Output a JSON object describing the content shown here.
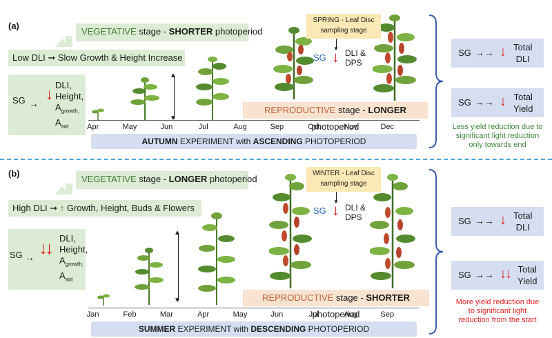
{
  "panel_a": {
    "label": "(a)",
    "vegetative": {
      "prefix": "VEGETATIVE",
      "mid": " stage - ",
      "bold": "SHORTER",
      "suffix": " photoperiod"
    },
    "growth_line": {
      "left": "Low DLI",
      "right": "Slow Growth & Height Increase"
    },
    "sg_box": {
      "sg": "SG",
      "params": [
        "DLI,",
        "Height,"
      ],
      "a1": "A",
      "a1sub": "growth,",
      "a2": "A",
      "a2sub": "sat"
    },
    "sampling": {
      "line1": "SPRING - Leaf Disc",
      "line2": "sampling stage"
    },
    "sg_dli": {
      "sg": "SG",
      "text1": "DLI &",
      "text2": "DPS"
    },
    "reproductive": {
      "prefix": "REPRODUCTIVE",
      "mid": " stage - ",
      "bold": "LONGER",
      "suffix": " photoperiod"
    },
    "months": [
      "Apr",
      "May",
      "Jun",
      "Jul",
      "Aug",
      "Sep",
      "Oct",
      "Nov",
      "Dec"
    ],
    "banner": {
      "b1": "AUTUMN",
      "mid": " EXPERIMENT with ",
      "b2": "ASCENDING",
      "end": " PHOTOPERIOD"
    },
    "right_boxes": [
      {
        "sg": "SG",
        "l1": "Total",
        "l2": "DLI"
      },
      {
        "sg": "SG",
        "l1": "Total",
        "l2": "Yield"
      }
    ],
    "note": [
      "Less yield reduction due to",
      "significant light reduction",
      "only towards end"
    ]
  },
  "panel_b": {
    "label": "(b)",
    "vegetative": {
      "prefix": "VEGETATIVE",
      "mid": " stage - ",
      "bold": "LONGER",
      "suffix": " photoperiod"
    },
    "growth_line": {
      "left": "High DLI",
      "right": "Growth, Height, Buds & Flowers"
    },
    "sg_box": {
      "sg": "SG",
      "params": [
        "DLI,",
        "Height,"
      ],
      "a1": "A",
      "a1sub": "growth,",
      "a2": "A",
      "a2sub": "sat"
    },
    "sampling": {
      "line1": "WINTER - Leaf Disc",
      "line2": "sampling stage"
    },
    "sg_dli": {
      "sg": "SG",
      "text1": "DLI &",
      "text2": "DPS"
    },
    "reproductive": {
      "prefix": "REPRODUCTIVE",
      "mid": " stage - ",
      "bold": "SHORTER",
      "suffix": " photoperiod"
    },
    "months": [
      "Jan",
      "Feb",
      "Mar",
      "Apr",
      "May",
      "Jun",
      "Jul",
      "Aug",
      "Sep"
    ],
    "banner": {
      "b1": "SUMMER",
      "mid": " EXPERIMENT with ",
      "b2": "DESCENDING",
      "end": " PHOTOPERIOD"
    },
    "right_boxes": [
      {
        "sg": "SG",
        "l1": "Total",
        "l2": "DLI"
      },
      {
        "sg": "SG",
        "l1": "Total",
        "l2": "Yield"
      }
    ],
    "note": [
      "More yield reduction due",
      "to significant light",
      "reduction from the start"
    ]
  },
  "colors": {
    "green": "#dcebd3",
    "beige": "#f8e3d0",
    "blue": "#d5def0",
    "yellow": "#fbe9b5",
    "red": "#e02020",
    "divider": "#4aa3d8"
  }
}
